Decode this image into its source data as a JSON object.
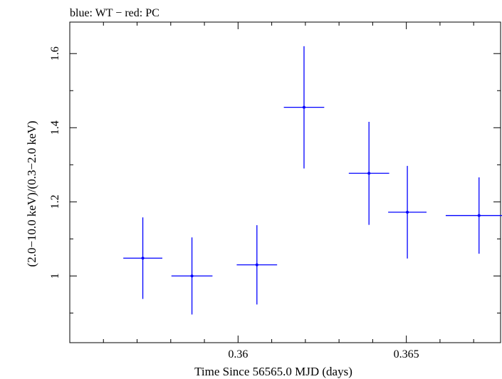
{
  "header_note": "blue: WT − red: PC",
  "chart_data": {
    "type": "scatter",
    "title": "",
    "xlabel": "Time Since 56565.0 MJD (days)",
    "ylabel": "(2.0−10.0 keV)/(0.3−2.0 keV)",
    "xlim": [
      0.355,
      0.3678
    ],
    "ylim": [
      0.82,
      1.685
    ],
    "grid": false,
    "legend": "none",
    "x_ticks": [
      0.36,
      0.365
    ],
    "x_tick_labels": [
      "0.36",
      "0.365"
    ],
    "y_ticks": [
      1.0,
      1.2,
      1.4,
      1.6
    ],
    "y_tick_labels": [
      "1",
      "1.2",
      "1.4",
      "1.6"
    ],
    "series": [
      {
        "color": "#0000ff",
        "points": [
          {
            "x": 0.35717,
            "x_err": 0.00058,
            "y": 1.048,
            "y_err_low": 0.11,
            "y_err_high": 0.11
          },
          {
            "x": 0.35863,
            "x_err": 0.00061,
            "y": 1.0,
            "y_err_low": 0.104,
            "y_err_high": 0.104
          },
          {
            "x": 0.36056,
            "x_err": 0.0006,
            "y": 1.03,
            "y_err_low": 0.107,
            "y_err_high": 0.107
          },
          {
            "x": 0.36196,
            "x_err": 0.0006,
            "y": 1.455,
            "y_err_low": 0.165,
            "y_err_high": 0.165
          },
          {
            "x": 0.36389,
            "x_err": 0.0006,
            "y": 1.277,
            "y_err_low": 0.139,
            "y_err_high": 0.139
          },
          {
            "x": 0.36503,
            "x_err": 0.00057,
            "y": 1.172,
            "y_err_low": 0.125,
            "y_err_high": 0.125
          },
          {
            "x": 0.36716,
            "x_err": 0.00099,
            "y": 1.163,
            "y_err_low": 0.103,
            "y_err_high": 0.103
          }
        ]
      }
    ]
  }
}
